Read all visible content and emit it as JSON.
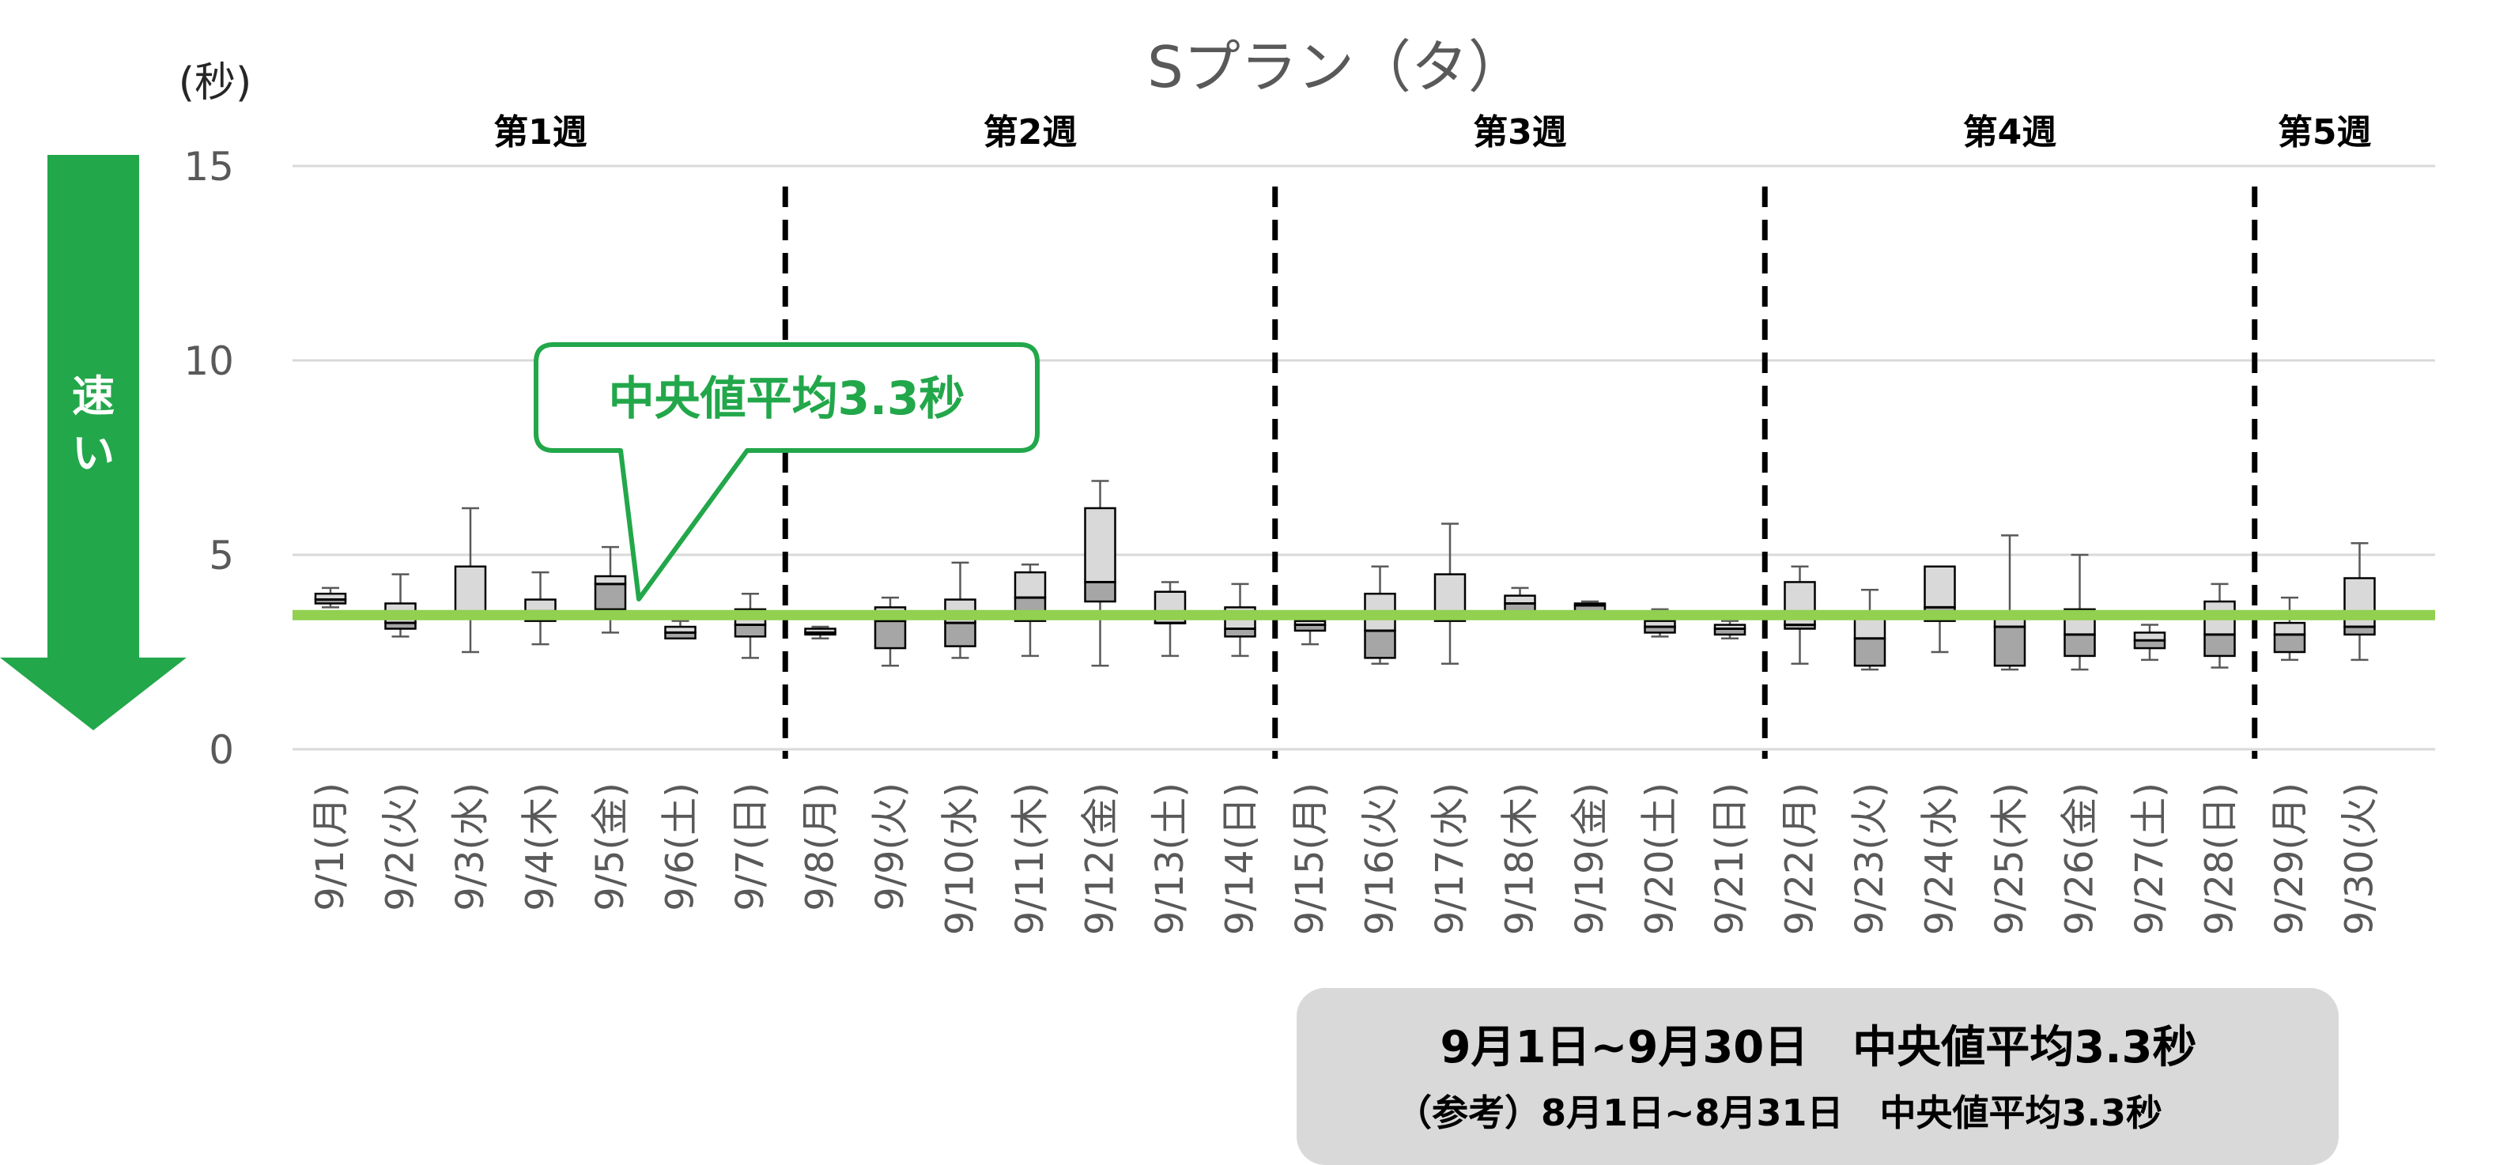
{
  "chart_data": {
    "type": "boxplot",
    "title": "Sプラン（タ）",
    "ylabel": "(秒)",
    "ylim": [
      0,
      15
    ],
    "yticks": [
      0,
      5,
      10,
      15
    ],
    "grid": true,
    "categories": [
      "9/1(月)",
      "9/2(火)",
      "9/3(水)",
      "9/4(木)",
      "9/5(金)",
      "9/6(土)",
      "9/7(日)",
      "9/8(月)",
      "9/9(火)",
      "9/10(水)",
      "9/11(木)",
      "9/12(金)",
      "9/13(土)",
      "9/14(日)",
      "9/15(月)",
      "9/16(火)",
      "9/17(水)",
      "9/18(木)",
      "9/19(金)",
      "9/20(土)",
      "9/21(日)",
      "9/22(月)",
      "9/23(火)",
      "9/24(水)",
      "9/25(木)",
      "9/26(金)",
      "9/27(土)",
      "9/28(日)",
      "9/29(月)",
      "9/30(火)"
    ],
    "boxes": [
      {
        "min": 3.65,
        "q1": 3.75,
        "median": 3.85,
        "q3": 4.0,
        "max": 4.15
      },
      {
        "min": 2.9,
        "q1": 3.1,
        "median": 3.25,
        "q3": 3.75,
        "max": 4.5
      },
      {
        "min": 2.5,
        "q1": 3.4,
        "median": 3.4,
        "q3": 4.7,
        "max": 6.2
      },
      {
        "min": 2.7,
        "q1": 3.3,
        "median": 3.55,
        "q3": 3.85,
        "max": 4.55
      },
      {
        "min": 3.0,
        "q1": 3.6,
        "median": 4.25,
        "q3": 4.45,
        "max": 5.2
      },
      {
        "min": 2.85,
        "q1": 2.85,
        "median": 3.0,
        "q3": 3.15,
        "max": 3.3
      },
      {
        "min": 2.35,
        "q1": 2.9,
        "median": 3.2,
        "q3": 3.6,
        "max": 4.0
      },
      {
        "min": 2.85,
        "q1": 2.95,
        "median": 3.0,
        "q3": 3.1,
        "max": 3.15
      },
      {
        "min": 2.15,
        "q1": 2.6,
        "median": 3.3,
        "q3": 3.65,
        "max": 3.9
      },
      {
        "min": 2.35,
        "q1": 2.65,
        "median": 3.25,
        "q3": 3.85,
        "max": 4.8
      },
      {
        "min": 2.4,
        "q1": 3.3,
        "median": 3.9,
        "q3": 4.55,
        "max": 4.75
      },
      {
        "min": 2.15,
        "q1": 3.8,
        "median": 4.3,
        "q3": 6.2,
        "max": 6.9
      },
      {
        "min": 2.4,
        "q1": 3.25,
        "median": 3.25,
        "q3": 4.05,
        "max": 4.3
      },
      {
        "min": 2.4,
        "q1": 2.9,
        "median": 3.1,
        "q3": 3.65,
        "max": 4.25
      },
      {
        "min": 2.7,
        "q1": 3.05,
        "median": 3.2,
        "q3": 3.3,
        "max": 3.45
      },
      {
        "min": 2.2,
        "q1": 2.35,
        "median": 3.05,
        "q3": 4.0,
        "max": 4.7
      },
      {
        "min": 2.2,
        "q1": 3.3,
        "median": 3.35,
        "q3": 4.5,
        "max": 5.8
      },
      {
        "min": 3.5,
        "q1": 3.55,
        "median": 3.75,
        "q3": 3.95,
        "max": 4.15
      },
      {
        "min": 3.5,
        "q1": 3.55,
        "median": 3.7,
        "q3": 3.75,
        "max": 3.8
      },
      {
        "min": 2.9,
        "q1": 3.0,
        "median": 3.15,
        "q3": 3.3,
        "max": 3.6
      },
      {
        "min": 2.85,
        "q1": 2.95,
        "median": 3.1,
        "q3": 3.2,
        "max": 3.3
      },
      {
        "min": 2.2,
        "q1": 3.1,
        "median": 3.2,
        "q3": 4.3,
        "max": 4.7
      },
      {
        "min": 2.05,
        "q1": 2.15,
        "median": 2.85,
        "q3": 3.4,
        "max": 4.1
      },
      {
        "min": 2.5,
        "q1": 3.3,
        "median": 3.65,
        "q3": 4.7,
        "max": 4.7
      },
      {
        "min": 2.05,
        "q1": 2.15,
        "median": 3.15,
        "q3": 3.45,
        "max": 5.5
      },
      {
        "min": 2.05,
        "q1": 2.4,
        "median": 2.95,
        "q3": 3.6,
        "max": 5.0
      },
      {
        "min": 2.3,
        "q1": 2.6,
        "median": 2.8,
        "q3": 3.0,
        "max": 3.2
      },
      {
        "min": 2.1,
        "q1": 2.4,
        "median": 2.95,
        "q3": 3.8,
        "max": 4.25
      },
      {
        "min": 2.3,
        "q1": 2.5,
        "median": 2.95,
        "q3": 3.25,
        "max": 3.9
      },
      {
        "min": 2.3,
        "q1": 2.95,
        "median": 3.15,
        "q3": 4.4,
        "max": 5.3
      }
    ],
    "reference_line": {
      "value": 3.45,
      "color": "#92d050"
    },
    "weeks": [
      {
        "label": "第1週",
        "from": 0,
        "to": 6
      },
      {
        "label": "第2週",
        "from": 7,
        "to": 13
      },
      {
        "label": "第3週",
        "from": 14,
        "to": 20
      },
      {
        "label": "第4週",
        "from": 21,
        "to": 27
      },
      {
        "label": "第5週",
        "from": 28,
        "to": 29
      }
    ],
    "week_dividers_after": [
      6,
      13,
      20,
      27
    ],
    "box_fill_upper": "#d9d9d9",
    "box_fill_lower": "#a6a6a6"
  },
  "callout": {
    "text": "中央値平均3.3秒",
    "color": "#22a74a"
  },
  "speed_arrow": {
    "text_line1": "速",
    "text_line2": "い",
    "color": "#22a74a"
  },
  "summary": {
    "line1": "9月1日~9月30日　中央値平均3.3秒",
    "line2": "（参考）8月1日~8月31日　中央値平均3.3秒"
  }
}
